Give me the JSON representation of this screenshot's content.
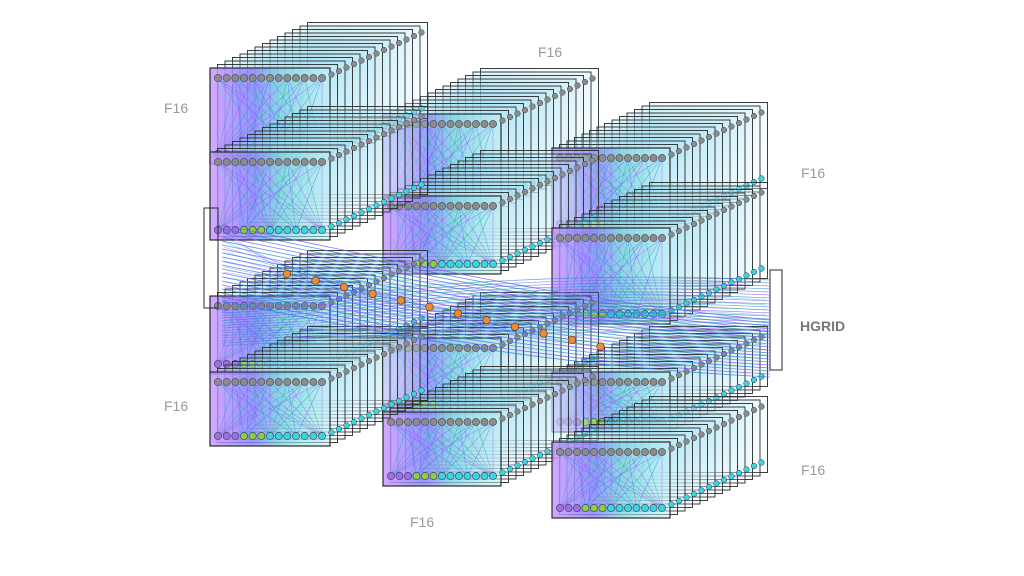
{
  "diagram": {
    "module_labels": [
      "F16",
      "F16",
      "F16",
      "F16",
      "F16",
      "F16"
    ],
    "interconnect_label": "HGRID",
    "colors": {
      "frame": "#2a2a2a",
      "node_gray": "#8c8c8c",
      "node_cyan": "#39d6e0",
      "node_green": "#8ccf3f",
      "node_purple": "#a070e0",
      "node_orange": "#ee8a3c",
      "link_blue": "#3a6cff",
      "link_teal": "#1fa3a3",
      "link_violet": "#a24bff",
      "link_cyan": "#5fd8e6"
    }
  }
}
